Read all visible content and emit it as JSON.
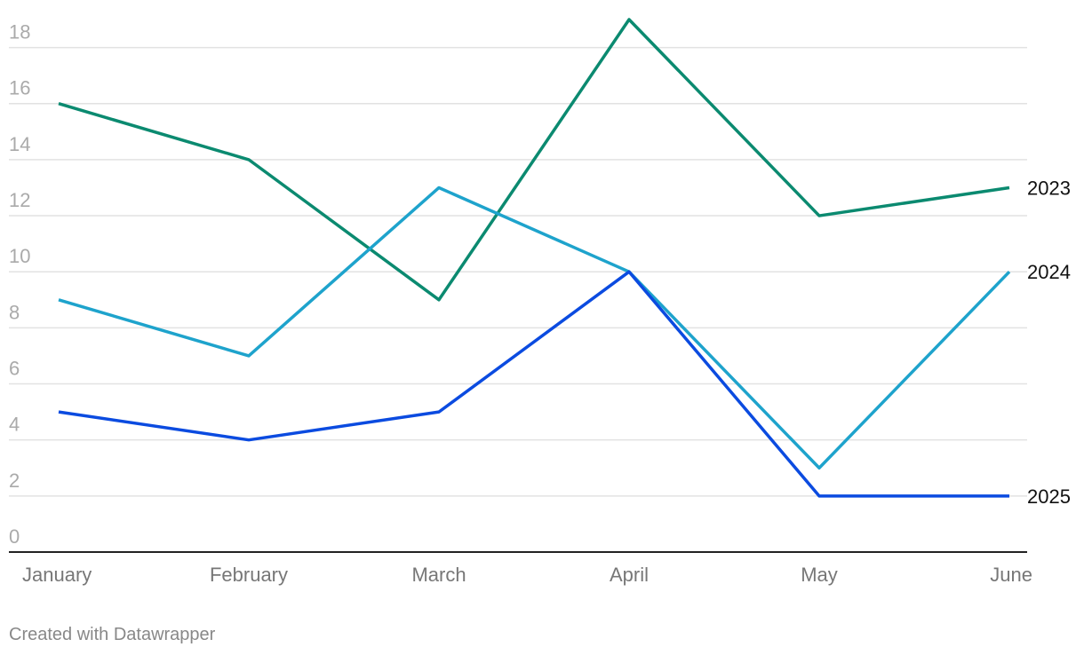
{
  "chart_data": {
    "type": "line",
    "categories": [
      "January",
      "February",
      "March",
      "April",
      "May",
      "June"
    ],
    "series": [
      {
        "name": "2023",
        "color": "#0b8a70",
        "values": [
          16,
          14,
          9,
          19,
          12,
          13
        ]
      },
      {
        "name": "2024",
        "color": "#1ea3cc",
        "values": [
          9,
          7,
          13,
          10,
          3,
          10
        ]
      },
      {
        "name": "2025",
        "color": "#0b4be0",
        "values": [
          5,
          4,
          5,
          10,
          2,
          2
        ]
      }
    ],
    "ylim": [
      0,
      19
    ],
    "yticks": [
      0,
      2,
      4,
      6,
      8,
      10,
      12,
      14,
      16,
      18
    ],
    "grid": true,
    "credit": "Created with Datawrapper"
  }
}
